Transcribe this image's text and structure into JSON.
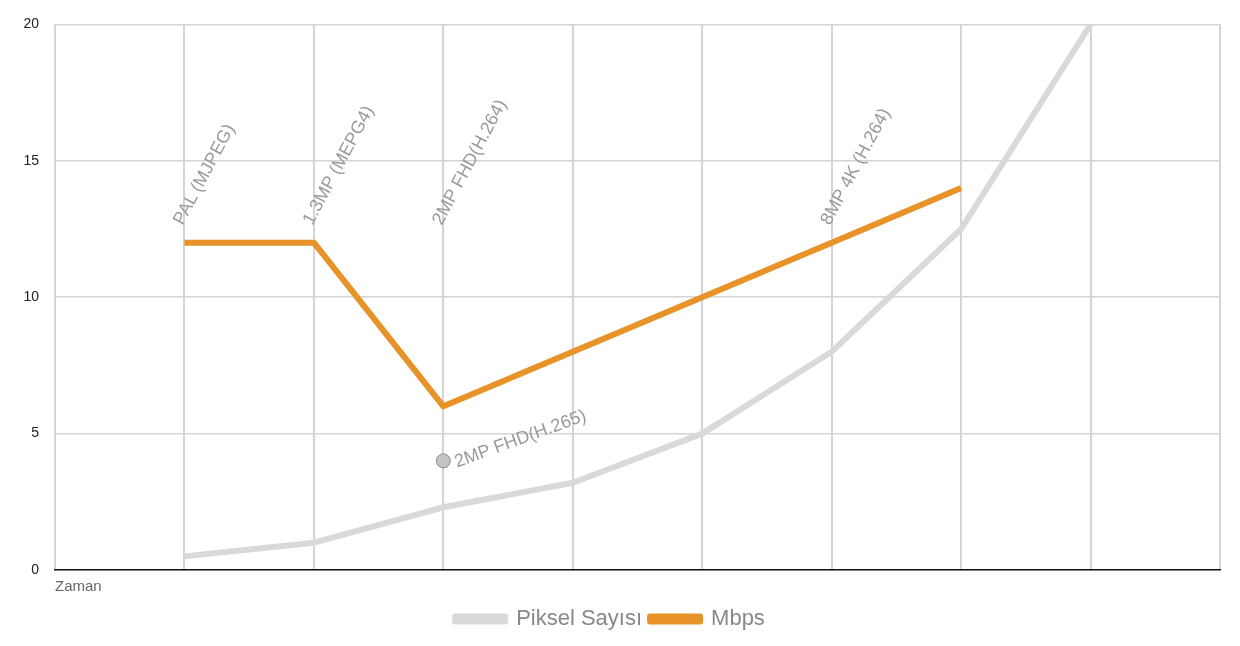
{
  "chart_data": {
    "type": "line",
    "xlabel": "Zaman",
    "categories": [
      null,
      null,
      null,
      null,
      null,
      null,
      null,
      null,
      null,
      null
    ],
    "ylim": [
      0,
      20
    ],
    "yticks": [
      0,
      5,
      10,
      15,
      20
    ],
    "tick_labels": "y",
    "grid": true,
    "legend": "bottom",
    "marker": "none",
    "line_style": "solid",
    "series": [
      {
        "name": "Piksel Sayısı",
        "color": "#d9d9d9",
        "values": [
          null,
          0.5,
          1,
          2.3,
          3.2,
          5,
          8,
          12.5,
          20,
          null
        ]
      },
      {
        "name": "Mbps",
        "color": "#e8922a",
        "values": [
          null,
          12,
          12,
          6,
          8,
          10,
          12,
          14,
          null,
          null
        ]
      },
      {
        "name": "2MP FHD(H.265)",
        "color": "#c4c4c4",
        "marker": "circle",
        "values": [
          null,
          null,
          null,
          4,
          null,
          null,
          null,
          null,
          null,
          null
        ]
      }
    ],
    "annotations": [
      "PAL (MJPEG)",
      "1.3MP (MEPG4)",
      "2MP FHD(H.264)",
      "8MP 4K (H.264)"
    ]
  }
}
